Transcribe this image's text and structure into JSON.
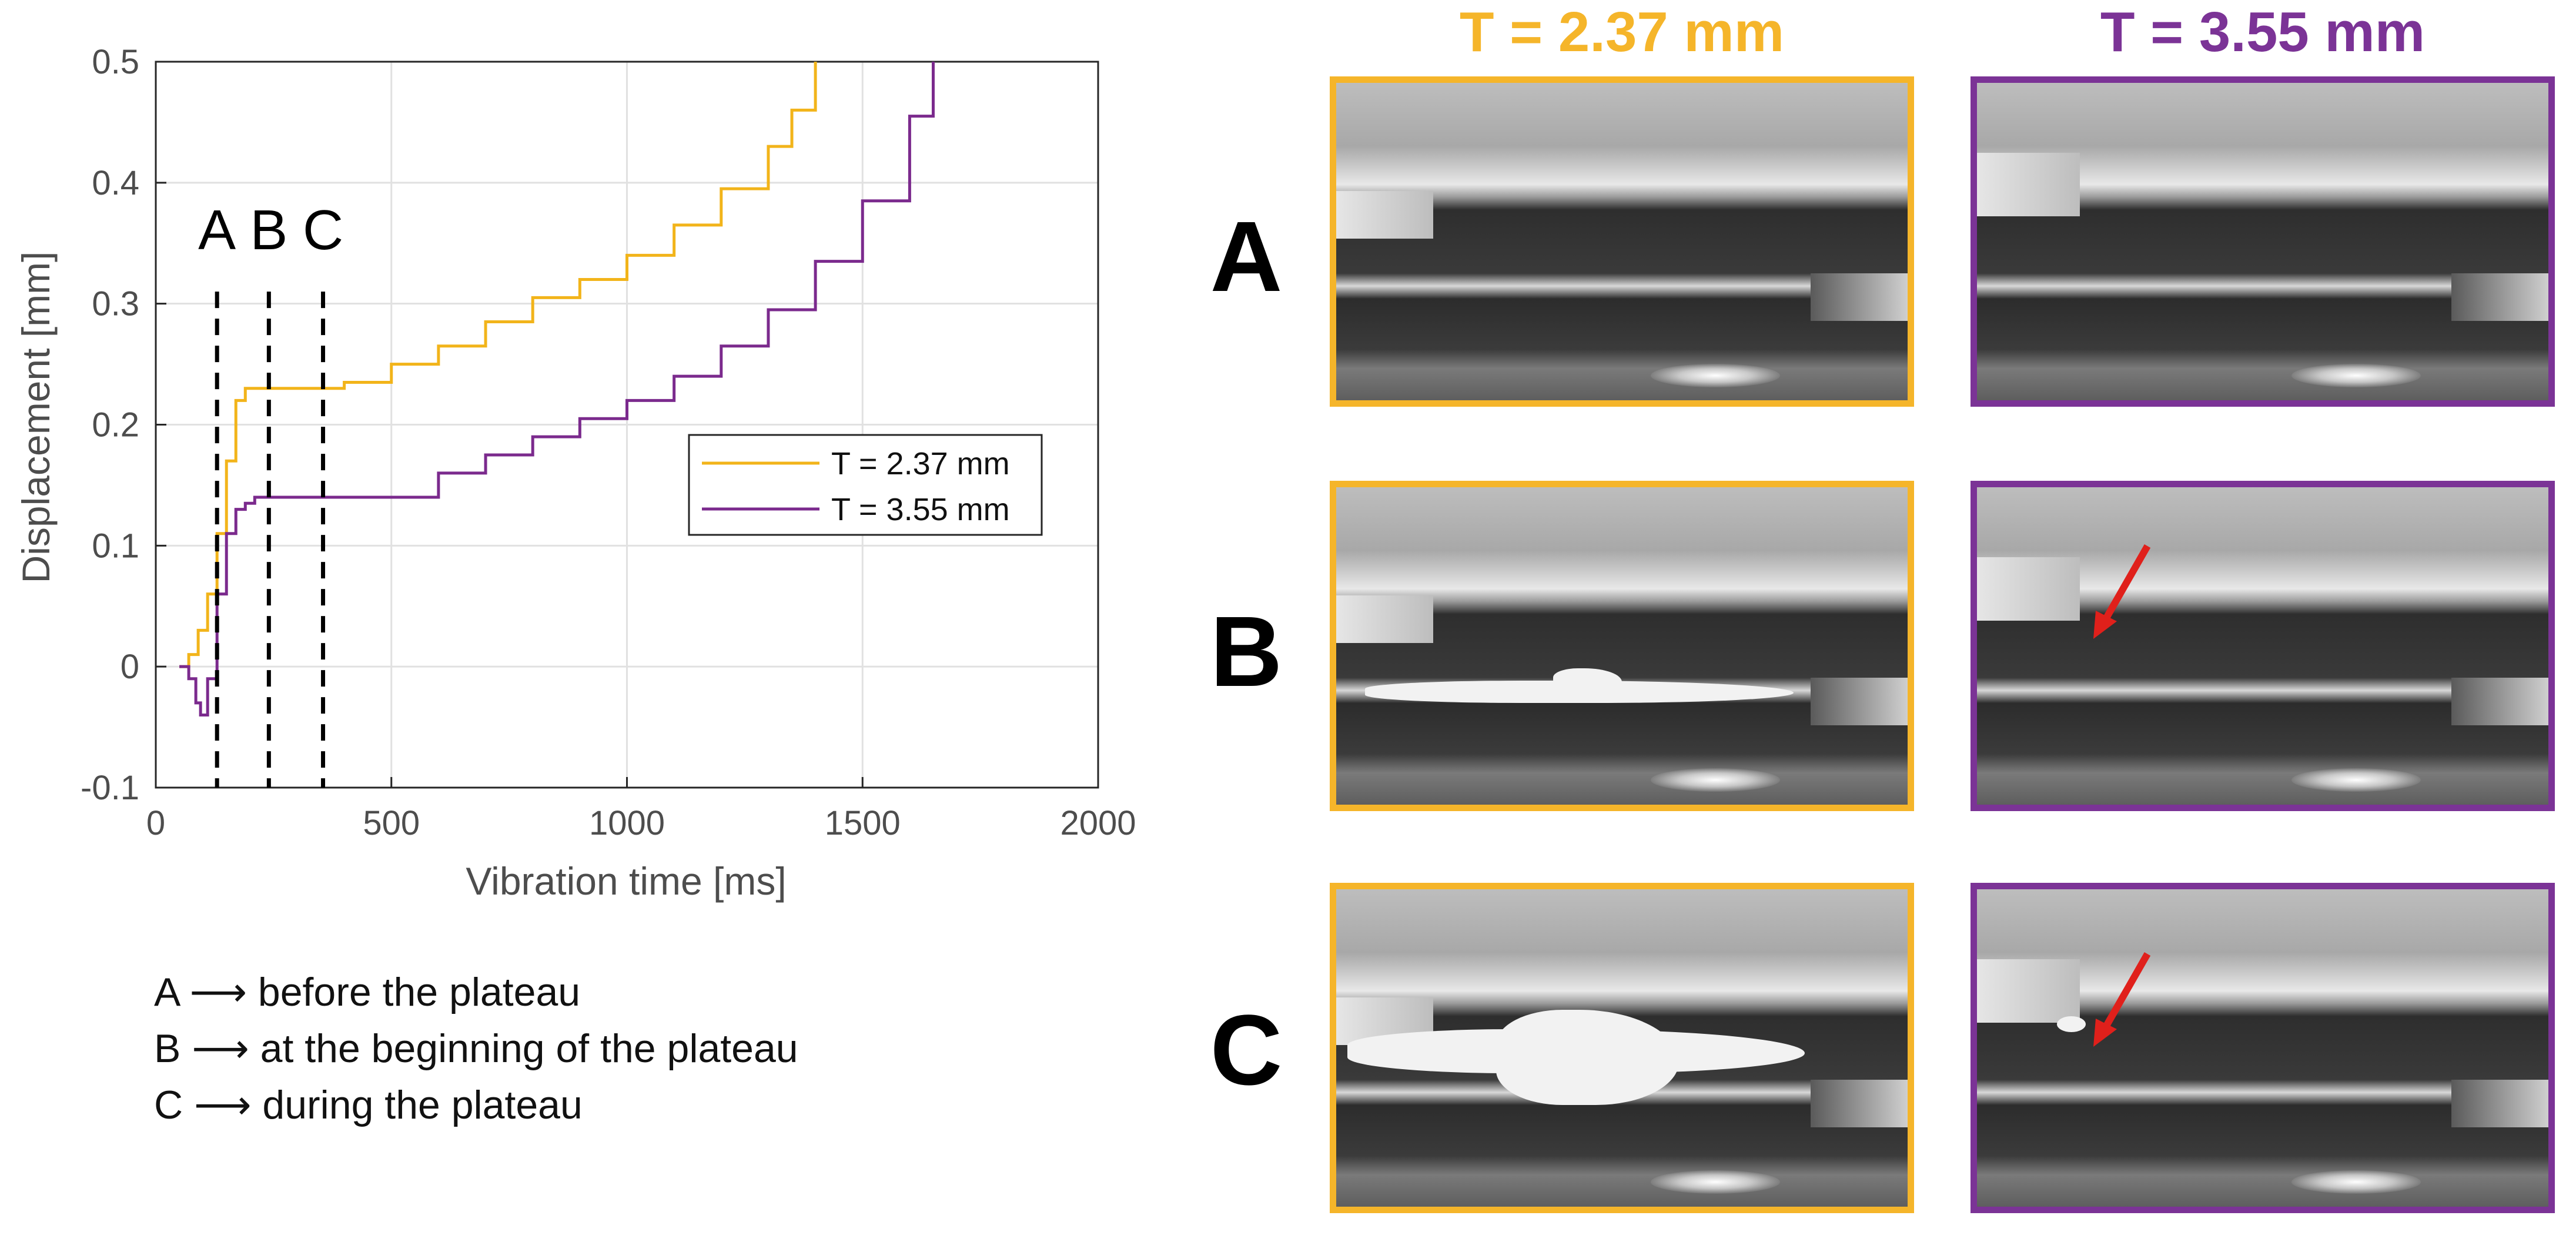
{
  "chart_data": {
    "type": "line",
    "xlabel": "Vibration time [ms]",
    "ylabel": "Displacement [mm]",
    "xlim": [
      0,
      2000
    ],
    "ylim": [
      -0.1,
      0.5
    ],
    "x_ticks": [
      "0",
      "500",
      "1000",
      "1500",
      "2000"
    ],
    "y_ticks": [
      "-0.1",
      "0",
      "0.1",
      "0.2",
      "0.3",
      "0.4",
      "0.5"
    ],
    "grid": true,
    "legend_position": "right-middle",
    "series": [
      {
        "name": "T = 2.37 mm",
        "color": "#f2b41a",
        "x": [
          50,
          70,
          90,
          110,
          130,
          150,
          170,
          190,
          350,
          400,
          500,
          600,
          700,
          800,
          900,
          1000,
          1100,
          1200,
          1300,
          1350,
          1400
        ],
        "y": [
          0.0,
          0.01,
          0.03,
          0.06,
          0.11,
          0.17,
          0.22,
          0.23,
          0.23,
          0.235,
          0.25,
          0.265,
          0.285,
          0.305,
          0.32,
          0.34,
          0.365,
          0.395,
          0.43,
          0.46,
          0.5
        ]
      },
      {
        "name": "T = 3.55 mm",
        "color": "#7b2a8d",
        "x": [
          50,
          70,
          85,
          95,
          110,
          130,
          150,
          170,
          190,
          210,
          500,
          600,
          700,
          800,
          900,
          1000,
          1100,
          1200,
          1300,
          1400,
          1500,
          1600,
          1650
        ],
        "y": [
          0.0,
          -0.01,
          -0.03,
          -0.04,
          -0.01,
          0.06,
          0.11,
          0.13,
          0.135,
          0.14,
          0.14,
          0.16,
          0.175,
          0.19,
          0.205,
          0.22,
          0.24,
          0.265,
          0.295,
          0.335,
          0.385,
          0.455,
          0.5
        ]
      }
    ],
    "markers": [
      {
        "label": "A",
        "x": 130
      },
      {
        "label": "B",
        "x": 240
      },
      {
        "label": "C",
        "x": 355
      }
    ]
  },
  "notes": [
    "A ⟶ before the plateau",
    "B ⟶ at the beginning of the plateau",
    "C ⟶ during the plateau"
  ],
  "photo_grid": {
    "columns": [
      {
        "title": "T = 2.37 mm",
        "color": "#f2b41a"
      },
      {
        "title": "T = 3.55 mm",
        "color": "#7b2a8d"
      }
    ],
    "rows": [
      "A",
      "B",
      "C"
    ],
    "arrow_color": "#e0201b"
  }
}
